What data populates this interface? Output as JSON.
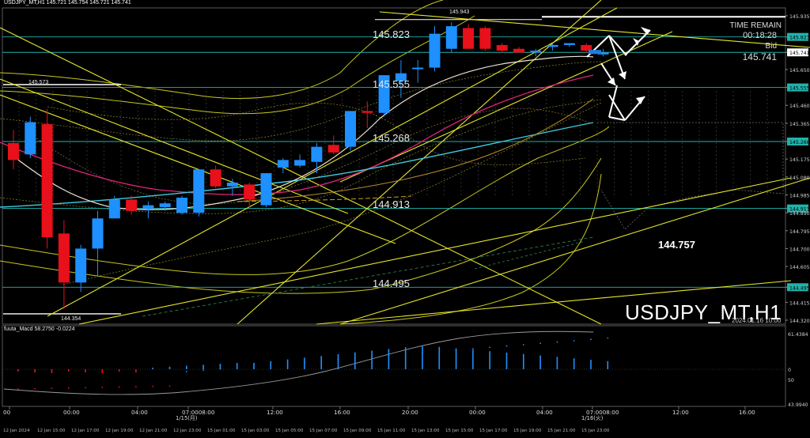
{
  "header": {
    "title": "USDJPY_MT,H1  145.721 145.754 145.721 145.741"
  },
  "time_remain": {
    "label": "TIME REMAIN",
    "value": "00:18:28",
    "bid_label": "Bid",
    "bid_value": "145.741"
  },
  "symbol_label": "USDJPY_MT,H1",
  "date_stamp": "2024.01.16 10:00",
  "forecast_value": "144.757",
  "indicator": {
    "title": "fuuta_Macd 58.2750  -0.0224",
    "scale_labels": [
      "61.4384",
      "0",
      "50",
      "43.9940"
    ]
  },
  "level_labels": [
    {
      "name": "level-145823",
      "text": "145.823"
    },
    {
      "name": "level-145555",
      "text": "145.555"
    },
    {
      "name": "level-145268",
      "text": "145.268"
    },
    {
      "name": "level-144913",
      "text": "144.913"
    },
    {
      "name": "level-144495",
      "text": "144.495"
    },
    {
      "name": "level-145943",
      "text": "145.943"
    },
    {
      "name": "level-145573",
      "text": "145.573"
    },
    {
      "name": "level-144354",
      "text": "144.354"
    }
  ],
  "price_axis": [
    "145.935",
    "145.823",
    "145.741",
    "145.650",
    "145.555",
    "145.460",
    "145.365",
    "145.268",
    "145.175",
    "145.080",
    "144.985",
    "144.913",
    "144.890",
    "144.795",
    "144.700",
    "144.605",
    "144.495",
    "144.415",
    "144.320"
  ],
  "price_highlights": [
    "145.823",
    "145.741",
    "145.555",
    "145.268",
    "144.913",
    "144.495"
  ],
  "time_top": [
    "00",
    "00:00",
    "04:00",
    "07:0008:00",
    "12:00",
    "16:00",
    "20:00",
    "00:00",
    "04:00",
    "07:0008:00",
    "12:00",
    "16:00"
  ],
  "time_bottom": [
    "12 Jan 2024",
    "12 Jan 15:00",
    "12 Jan 17:00",
    "12 Jan 19:00",
    "12 Jan 21:00",
    "12 Jan 23:00",
    "15 Jan 01:00",
    "15 Jan 03:00",
    "15 Jan 05:00",
    "15 Jan 07:00",
    "15 Jan 09:00",
    "15 Jan 11:00",
    "15 Jan 13:00",
    "15 Jan 15:00",
    "15 Jan 17:00",
    "15 Jan 19:00",
    "15 Jan 21:00",
    "15 Jan 23:00"
  ],
  "day_labels": [
    "1/15(月)",
    "1/16(火)"
  ],
  "colors": {
    "bull": "#1e90ff",
    "bear": "#e8101a",
    "level": "#20b2aa",
    "trend": "#e6e62a",
    "price_tag": "#1f7de0",
    "line_pink": "#e0227a",
    "line_cyan": "#3ccbe0"
  },
  "candles": [
    {
      "o": 145.26,
      "h": 145.33,
      "l": 145.12,
      "c": 145.17
    },
    {
      "o": 145.2,
      "h": 145.4,
      "l": 145.18,
      "c": 145.37
    },
    {
      "o": 145.36,
      "h": 145.44,
      "l": 144.7,
      "c": 144.76
    },
    {
      "o": 144.78,
      "h": 144.85,
      "l": 144.38,
      "c": 144.52
    },
    {
      "o": 144.52,
      "h": 144.72,
      "l": 144.47,
      "c": 144.7
    },
    {
      "o": 144.7,
      "h": 144.9,
      "l": 144.55,
      "c": 144.86
    },
    {
      "o": 144.86,
      "h": 144.98,
      "l": 144.86,
      "c": 144.96
    },
    {
      "o": 144.96,
      "h": 144.98,
      "l": 144.88,
      "c": 144.9
    },
    {
      "o": 144.91,
      "h": 144.95,
      "l": 144.86,
      "c": 144.93
    },
    {
      "o": 144.92,
      "h": 144.95,
      "l": 144.9,
      "c": 144.94
    },
    {
      "o": 144.89,
      "h": 144.98,
      "l": 144.88,
      "c": 144.97
    },
    {
      "o": 144.89,
      "h": 145.12,
      "l": 144.87,
      "c": 145.12
    },
    {
      "o": 145.12,
      "h": 145.14,
      "l": 145.02,
      "c": 145.03
    },
    {
      "o": 145.03,
      "h": 145.07,
      "l": 144.98,
      "c": 145.05
    },
    {
      "o": 145.04,
      "h": 145.05,
      "l": 144.92,
      "c": 144.96
    },
    {
      "o": 144.93,
      "h": 145.1,
      "l": 144.92,
      "c": 145.1
    },
    {
      "o": 145.13,
      "h": 145.18,
      "l": 145.1,
      "c": 145.17
    },
    {
      "o": 145.14,
      "h": 145.2,
      "l": 145.13,
      "c": 145.17
    },
    {
      "o": 145.16,
      "h": 145.26,
      "l": 145.1,
      "c": 145.24
    },
    {
      "o": 145.25,
      "h": 145.3,
      "l": 145.2,
      "c": 145.21
    },
    {
      "o": 145.24,
      "h": 145.43,
      "l": 145.22,
      "c": 145.43
    },
    {
      "o": 145.43,
      "h": 145.48,
      "l": 145.34,
      "c": 145.42
    },
    {
      "o": 145.42,
      "h": 145.62,
      "l": 145.4,
      "c": 145.62
    },
    {
      "o": 145.59,
      "h": 145.7,
      "l": 145.5,
      "c": 145.63
    },
    {
      "o": 145.66,
      "h": 145.7,
      "l": 145.58,
      "c": 145.66
    },
    {
      "o": 145.66,
      "h": 145.88,
      "l": 145.64,
      "c": 145.84
    },
    {
      "o": 145.76,
      "h": 145.9,
      "l": 145.74,
      "c": 145.88
    },
    {
      "o": 145.87,
      "h": 145.89,
      "l": 145.76,
      "c": 145.76
    },
    {
      "o": 145.87,
      "h": 145.88,
      "l": 145.75,
      "c": 145.76
    },
    {
      "o": 145.78,
      "h": 145.79,
      "l": 145.74,
      "c": 145.75
    },
    {
      "o": 145.76,
      "h": 145.77,
      "l": 145.74,
      "c": 145.74
    },
    {
      "o": 145.74,
      "h": 145.76,
      "l": 145.72,
      "c": 145.75
    },
    {
      "o": 145.77,
      "h": 145.79,
      "l": 145.75,
      "c": 145.78
    },
    {
      "o": 145.78,
      "h": 145.79,
      "l": 145.77,
      "c": 145.79
    },
    {
      "o": 145.78,
      "h": 145.79,
      "l": 145.74,
      "c": 145.75
    },
    {
      "o": 145.73,
      "h": 145.76,
      "l": 145.72,
      "c": 145.74
    }
  ]
}
